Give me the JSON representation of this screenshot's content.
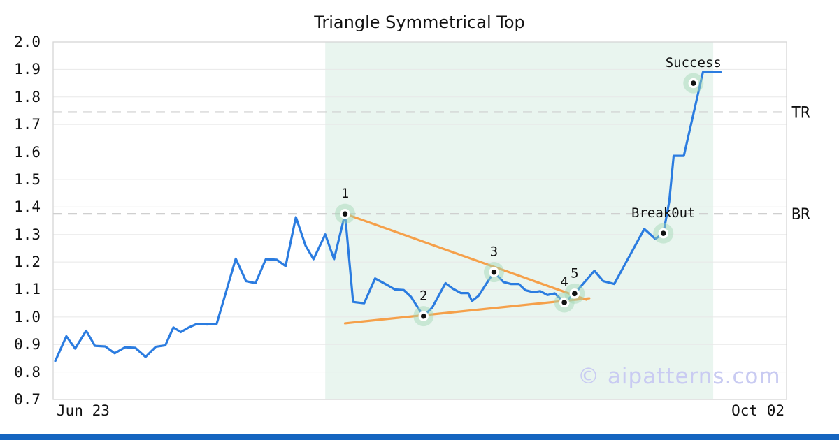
{
  "page": {
    "title": "Triangle Symmetrical Top",
    "watermark": "© aipatterns.com",
    "x_axis_left_label": "Jun 23",
    "x_axis_right_label": "Oct 02"
  },
  "colors": {
    "price_line": "#2b7ce0",
    "trendline": "#f5a04a",
    "level_dash": "#cfcfcf",
    "grid": "#e8e8e8",
    "plot_border": "#d6d6d6",
    "pattern_region_fill": "#e9f5ef",
    "marker_glow": "#9fd8b4",
    "marker_dot": "#111111",
    "watermark": "#c9cbf2",
    "bottom_bar": "#1565c0"
  },
  "chart_data": {
    "type": "line",
    "title": "Triangle Symmetrical Top",
    "xlabel": "",
    "ylabel": "",
    "x_range_labels": [
      "Jun 23",
      "Oct 02"
    ],
    "ylim": [
      0.7,
      2.0
    ],
    "y_ticks": [
      "2.0",
      "1.9",
      "1.8",
      "1.7",
      "1.6",
      "1.5",
      "1.4",
      "1.3",
      "1.2",
      "1.1",
      "1.0",
      "0.9",
      "0.8",
      "0.7"
    ],
    "grid": "horizontal",
    "legend": false,
    "series": [
      {
        "name": "price",
        "x_unit": "fraction_of_date_axis",
        "points": [
          [
            0.003,
            0.84
          ],
          [
            0.018,
            0.93
          ],
          [
            0.03,
            0.885
          ],
          [
            0.045,
            0.95
          ],
          [
            0.057,
            0.895
          ],
          [
            0.071,
            0.893
          ],
          [
            0.084,
            0.868
          ],
          [
            0.098,
            0.89
          ],
          [
            0.112,
            0.888
          ],
          [
            0.126,
            0.855
          ],
          [
            0.14,
            0.892
          ],
          [
            0.153,
            0.897
          ],
          [
            0.164,
            0.962
          ],
          [
            0.174,
            0.945
          ],
          [
            0.185,
            0.962
          ],
          [
            0.196,
            0.975
          ],
          [
            0.21,
            0.973
          ],
          [
            0.223,
            0.975
          ],
          [
            0.249,
            1.212
          ],
          [
            0.263,
            1.13
          ],
          [
            0.276,
            1.123
          ],
          [
            0.29,
            1.21
          ],
          [
            0.305,
            1.208
          ],
          [
            0.317,
            1.185
          ],
          [
            0.331,
            1.363
          ],
          [
            0.344,
            1.26
          ],
          [
            0.355,
            1.21
          ],
          [
            0.371,
            1.3
          ],
          [
            0.383,
            1.21
          ],
          [
            0.398,
            1.375
          ],
          [
            0.409,
            1.055
          ],
          [
            0.424,
            1.05
          ],
          [
            0.439,
            1.14
          ],
          [
            0.455,
            1.117
          ],
          [
            0.466,
            1.1
          ],
          [
            0.478,
            1.098
          ],
          [
            0.488,
            1.073
          ],
          [
            0.505,
            1.003
          ],
          [
            0.517,
            1.035
          ],
          [
            0.535,
            1.123
          ],
          [
            0.545,
            1.103
          ],
          [
            0.556,
            1.087
          ],
          [
            0.566,
            1.087
          ],
          [
            0.571,
            1.058
          ],
          [
            0.58,
            1.077
          ],
          [
            0.601,
            1.163
          ],
          [
            0.614,
            1.127
          ],
          [
            0.624,
            1.12
          ],
          [
            0.635,
            1.12
          ],
          [
            0.644,
            1.097
          ],
          [
            0.655,
            1.09
          ],
          [
            0.664,
            1.094
          ],
          [
            0.674,
            1.08
          ],
          [
            0.684,
            1.086
          ],
          [
            0.697,
            1.053
          ],
          [
            0.711,
            1.085
          ],
          [
            0.738,
            1.168
          ],
          [
            0.75,
            1.13
          ],
          [
            0.765,
            1.12
          ],
          [
            0.806,
            1.32
          ],
          [
            0.821,
            1.284
          ],
          [
            0.832,
            1.304
          ],
          [
            0.84,
            1.42
          ],
          [
            0.846,
            1.586
          ],
          [
            0.86,
            1.586
          ],
          [
            0.886,
            1.89
          ],
          [
            0.91,
            1.89
          ]
        ]
      }
    ],
    "trendlines": [
      {
        "name": "upper",
        "from": [
          0.398,
          1.375
        ],
        "to": [
          0.727,
          1.063
        ]
      },
      {
        "name": "lower",
        "from": [
          0.398,
          0.977
        ],
        "to": [
          0.731,
          1.068
        ]
      }
    ],
    "levels": [
      {
        "label": "TR",
        "price": 1.745
      },
      {
        "label": "BR",
        "price": 1.375
      }
    ],
    "annotations": [
      {
        "label": "1",
        "x": 0.398,
        "price": 1.375
      },
      {
        "label": "2",
        "x": 0.505,
        "price": 1.003
      },
      {
        "label": "3",
        "x": 0.601,
        "price": 1.163
      },
      {
        "label": "4",
        "x": 0.697,
        "price": 1.053
      },
      {
        "label": "5",
        "x": 0.711,
        "price": 1.085
      },
      {
        "label": "Break0ut",
        "x": 0.832,
        "price": 1.304
      },
      {
        "label": "Success",
        "x": 0.873,
        "price": 1.85
      }
    ],
    "pattern_region": {
      "x_start": 0.371,
      "x_end": 0.9
    }
  }
}
